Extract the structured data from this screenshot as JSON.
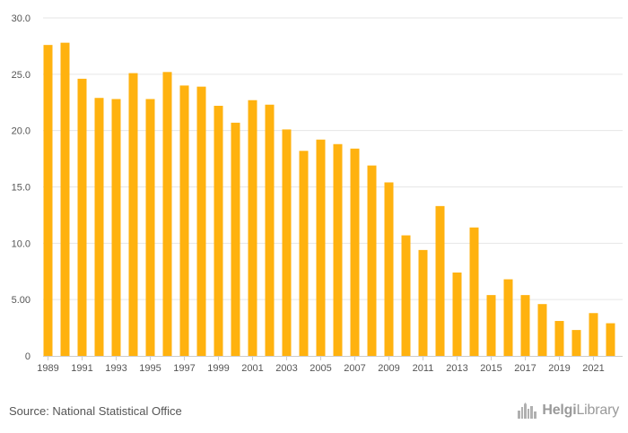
{
  "chart_data": {
    "type": "bar",
    "categories": [
      "1989",
      "1990",
      "1991",
      "1992",
      "1993",
      "1994",
      "1995",
      "1996",
      "1997",
      "1998",
      "1999",
      "2000",
      "2001",
      "2002",
      "2003",
      "2004",
      "2005",
      "2006",
      "2007",
      "2008",
      "2009",
      "2010",
      "2011",
      "2012",
      "2013",
      "2014",
      "2015",
      "2016",
      "2017",
      "2018",
      "2019",
      "2020",
      "2021",
      "2022"
    ],
    "values": [
      27.6,
      27.8,
      24.6,
      22.9,
      22.8,
      25.1,
      22.8,
      25.2,
      24.0,
      23.9,
      22.2,
      20.7,
      22.7,
      22.3,
      20.1,
      18.2,
      19.2,
      18.8,
      18.4,
      16.9,
      15.4,
      10.7,
      9.4,
      13.3,
      7.4,
      11.4,
      5.4,
      6.8,
      5.4,
      4.6,
      3.1,
      2.3,
      3.8,
      2.9
    ],
    "x_tick_labels": [
      "1989",
      "1991",
      "1993",
      "1995",
      "1997",
      "1999",
      "2001",
      "2003",
      "2005",
      "2007",
      "2009",
      "2011",
      "2013",
      "2015",
      "2017",
      "2019",
      "2021"
    ],
    "y_ticks": [
      0,
      5,
      10,
      15,
      20,
      25,
      30
    ],
    "y_tick_labels": [
      "0",
      "5.00",
      "10.0",
      "15.0",
      "20.0",
      "25.0",
      "30.0"
    ],
    "ylim": [
      0,
      30
    ],
    "grid": true,
    "title": "",
    "xlabel": "",
    "ylabel": "",
    "colors": {
      "bar": "#FFB20F",
      "grid": "#E6E6E6",
      "axis": "#CCCCCC",
      "tick_text": "#555555"
    }
  },
  "footer": {
    "source": "Source: National Statistical Office",
    "brand_part1": "Helgi",
    "brand_part2": "Library",
    "brand_icon": "skyline-icon"
  }
}
